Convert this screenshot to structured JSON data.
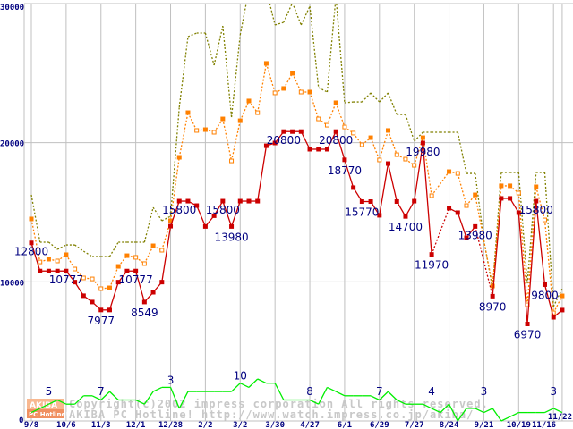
{
  "chart_data": {
    "type": "line",
    "title": "",
    "xlabel": "",
    "ylabel": "",
    "ylim": [
      0,
      30000
    ],
    "y_ticks": [
      "0",
      "10000",
      "20000",
      "30000"
    ],
    "x_ticks": [
      "9/8",
      "10/6",
      "11/3",
      "12/1",
      "12/28",
      "2/2",
      "3/2",
      "3/30",
      "4/27",
      "6/1",
      "6/29",
      "7/27",
      "8/24",
      "9/21",
      "10/19",
      "11/16",
      "11/22"
    ],
    "x_tick_index": [
      0,
      4,
      8,
      12,
      16,
      20,
      24,
      28,
      32,
      36,
      40,
      44,
      48,
      52,
      56,
      60,
      61
    ],
    "grid": true,
    "series": [
      {
        "name": "max",
        "color": "#808000",
        "style": "dotted",
        "values": [
          16250,
          12850,
          12850,
          12330,
          12650,
          12650,
          12200,
          11820,
          11820,
          11820,
          12850,
          12850,
          12850,
          12850,
          15350,
          14390,
          14710,
          22550,
          27620,
          27880,
          27880,
          25570,
          28390,
          21840,
          27750,
          31000,
          30060,
          31000,
          28460,
          28650,
          30060,
          28460,
          29800,
          23960,
          23640,
          30500,
          22870,
          22930,
          22930,
          23580,
          22930,
          23580,
          22030,
          22030,
          20110,
          20750,
          20750,
          20750,
          20750,
          20750,
          17790,
          17790,
          13000,
          9510,
          17860,
          17860,
          17860,
          9890,
          17860,
          17860,
          8220,
          9510
        ]
      },
      {
        "name": "average",
        "color": "#ff8000",
        "style": "dotted-markers",
        "values": [
          14520,
          11430,
          11630,
          11500,
          11950,
          10920,
          10280,
          10210,
          9510,
          9570,
          11110,
          11880,
          11760,
          11310,
          12590,
          12270,
          14390,
          18950,
          22160,
          20880,
          20940,
          20750,
          21710,
          18690,
          21580,
          23000,
          22160,
          25700,
          23580,
          23900,
          24990,
          23640,
          23640,
          21710,
          21260,
          22870,
          21130,
          20690,
          19850,
          20360,
          18760,
          20880,
          19140,
          18820,
          18370,
          20360,
          16190,
          null,
          17920,
          17790,
          15480,
          16250,
          null,
          9700,
          16900,
          16900,
          16380,
          8350,
          16830,
          14450,
          7770,
          8990
        ]
      },
      {
        "name": "min",
        "color": "#cc0000",
        "style": "solid-markers",
        "values": [
          12800,
          10777,
          10777,
          10777,
          10777,
          9980,
          9000,
          8549,
          7977,
          7977,
          9980,
          10777,
          10777,
          8549,
          9250,
          9980,
          14000,
          15800,
          15800,
          15480,
          13980,
          14750,
          15800,
          13980,
          15800,
          15800,
          15800,
          19780,
          19980,
          20800,
          20800,
          20800,
          19530,
          19530,
          19530,
          20800,
          18770,
          16770,
          15770,
          15770,
          14780,
          18500,
          15770,
          14700,
          15800,
          19980,
          11970,
          null,
          15290,
          14970,
          13170,
          13980,
          null,
          8970,
          16000,
          16000,
          14970,
          6970,
          15800,
          9800,
          7450,
          7970
        ]
      },
      {
        "name": "shops",
        "color": "#00ee00",
        "style": "solid",
        "axis": "count",
        "values": [
          2,
          3,
          4,
          5,
          4,
          4,
          6,
          6,
          5,
          7,
          5,
          5,
          5,
          4,
          7,
          8,
          8,
          3,
          7,
          7,
          7,
          7,
          7,
          7,
          9,
          8,
          10,
          9,
          9,
          5,
          5,
          5,
          5,
          4,
          8,
          7,
          6,
          6,
          6,
          6,
          5,
          7,
          5,
          4,
          4,
          4,
          3,
          2,
          4,
          0,
          3,
          3,
          2,
          3,
          0,
          1,
          2,
          2,
          2,
          2,
          3,
          2
        ]
      }
    ],
    "min_labels": [
      {
        "i": 0,
        "text": "12800"
      },
      {
        "i": 4,
        "text": "10777"
      },
      {
        "i": 8,
        "text": "7977"
      },
      {
        "i": 12,
        "text": "10777"
      },
      {
        "i": 13,
        "text": "8549"
      },
      {
        "i": 17,
        "text": "15800"
      },
      {
        "i": 22,
        "text": "15800"
      },
      {
        "i": 23,
        "text": "13980"
      },
      {
        "i": 29,
        "text": "20800"
      },
      {
        "i": 35,
        "text": "20800"
      },
      {
        "i": 36,
        "text": "18770"
      },
      {
        "i": 38,
        "text": "15770"
      },
      {
        "i": 43,
        "text": "14700"
      },
      {
        "i": 45,
        "text": "19980"
      },
      {
        "i": 46,
        "text": "11970"
      },
      {
        "i": 51,
        "text": "13980"
      },
      {
        "i": 53,
        "text": "8970"
      },
      {
        "i": 57,
        "text": "6970"
      },
      {
        "i": 58,
        "text": "15800"
      },
      {
        "i": 59,
        "text": "9800"
      }
    ],
    "count_labels": [
      {
        "i": 2,
        "text": "5"
      },
      {
        "i": 8,
        "text": "7"
      },
      {
        "i": 16,
        "text": "3"
      },
      {
        "i": 24,
        "text": "10"
      },
      {
        "i": 32,
        "text": "8"
      },
      {
        "i": 40,
        "text": "7"
      },
      {
        "i": 46,
        "text": "4"
      },
      {
        "i": 52,
        "text": "3"
      },
      {
        "i": 60,
        "text": "3"
      }
    ]
  },
  "watermark": {
    "logo_top": "AKIBA",
    "logo_bottom": "PC Hotline!",
    "line1": "Copyright(c)2002 impress corporation All rights reserved.",
    "line2": "AKIBA PC Hotline!  http://www.watch.impress.co.jp/akiba/"
  }
}
